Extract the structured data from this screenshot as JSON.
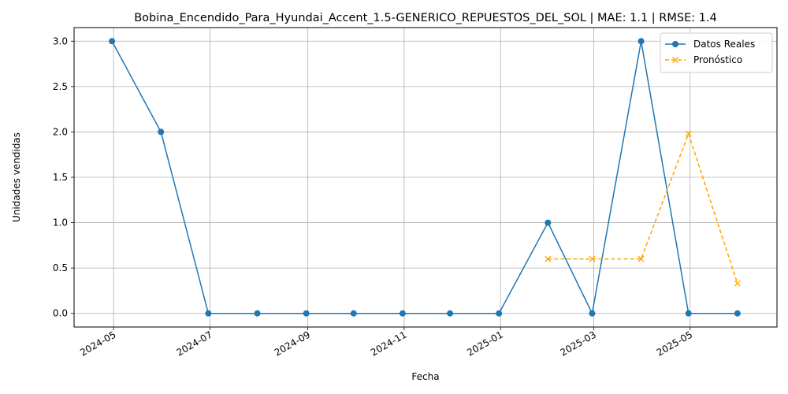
{
  "chart_data": {
    "type": "line",
    "title": "Bobina_Encendido_Para_Hyundai_Accent_1.5-GENERICO_REPUESTOS_DEL_SOL | MAE: 1.1 | RMSE: 1.4",
    "xlabel": "Fecha",
    "ylabel": "Unidades vendidas",
    "ylim": [
      -0.15,
      3.15
    ],
    "xlim": [
      "2024-04-06",
      "2025-06-25"
    ],
    "grid": true,
    "legend_position": "top-right",
    "x_ticks": [
      "2024-05",
      "2024-07",
      "2024-09",
      "2024-11",
      "2025-01",
      "2025-03",
      "2025-05"
    ],
    "y_ticks": [
      "0.0",
      "0.5",
      "1.0",
      "1.5",
      "2.0",
      "2.5",
      "3.0"
    ],
    "series": [
      {
        "name": "Datos Reales",
        "color": "#1f77b4",
        "style": "solid",
        "marker": "circle",
        "x": [
          "2024-04-30",
          "2024-05-31",
          "2024-06-30",
          "2024-07-31",
          "2024-08-31",
          "2024-09-30",
          "2024-10-31",
          "2024-11-30",
          "2024-12-31",
          "2025-01-31",
          "2025-02-28",
          "2025-03-31",
          "2025-04-30",
          "2025-05-31"
        ],
        "values": [
          3,
          2,
          0,
          0,
          0,
          0,
          0,
          0,
          0,
          1,
          0,
          3,
          0,
          0
        ]
      },
      {
        "name": "Pronóstico",
        "color": "#ffa500",
        "style": "dashed",
        "marker": "x",
        "x": [
          "2025-01-31",
          "2025-02-28",
          "2025-03-31",
          "2025-04-30",
          "2025-05-31"
        ],
        "values": [
          0.6,
          0.6,
          0.6,
          1.98,
          0.33
        ]
      }
    ]
  }
}
